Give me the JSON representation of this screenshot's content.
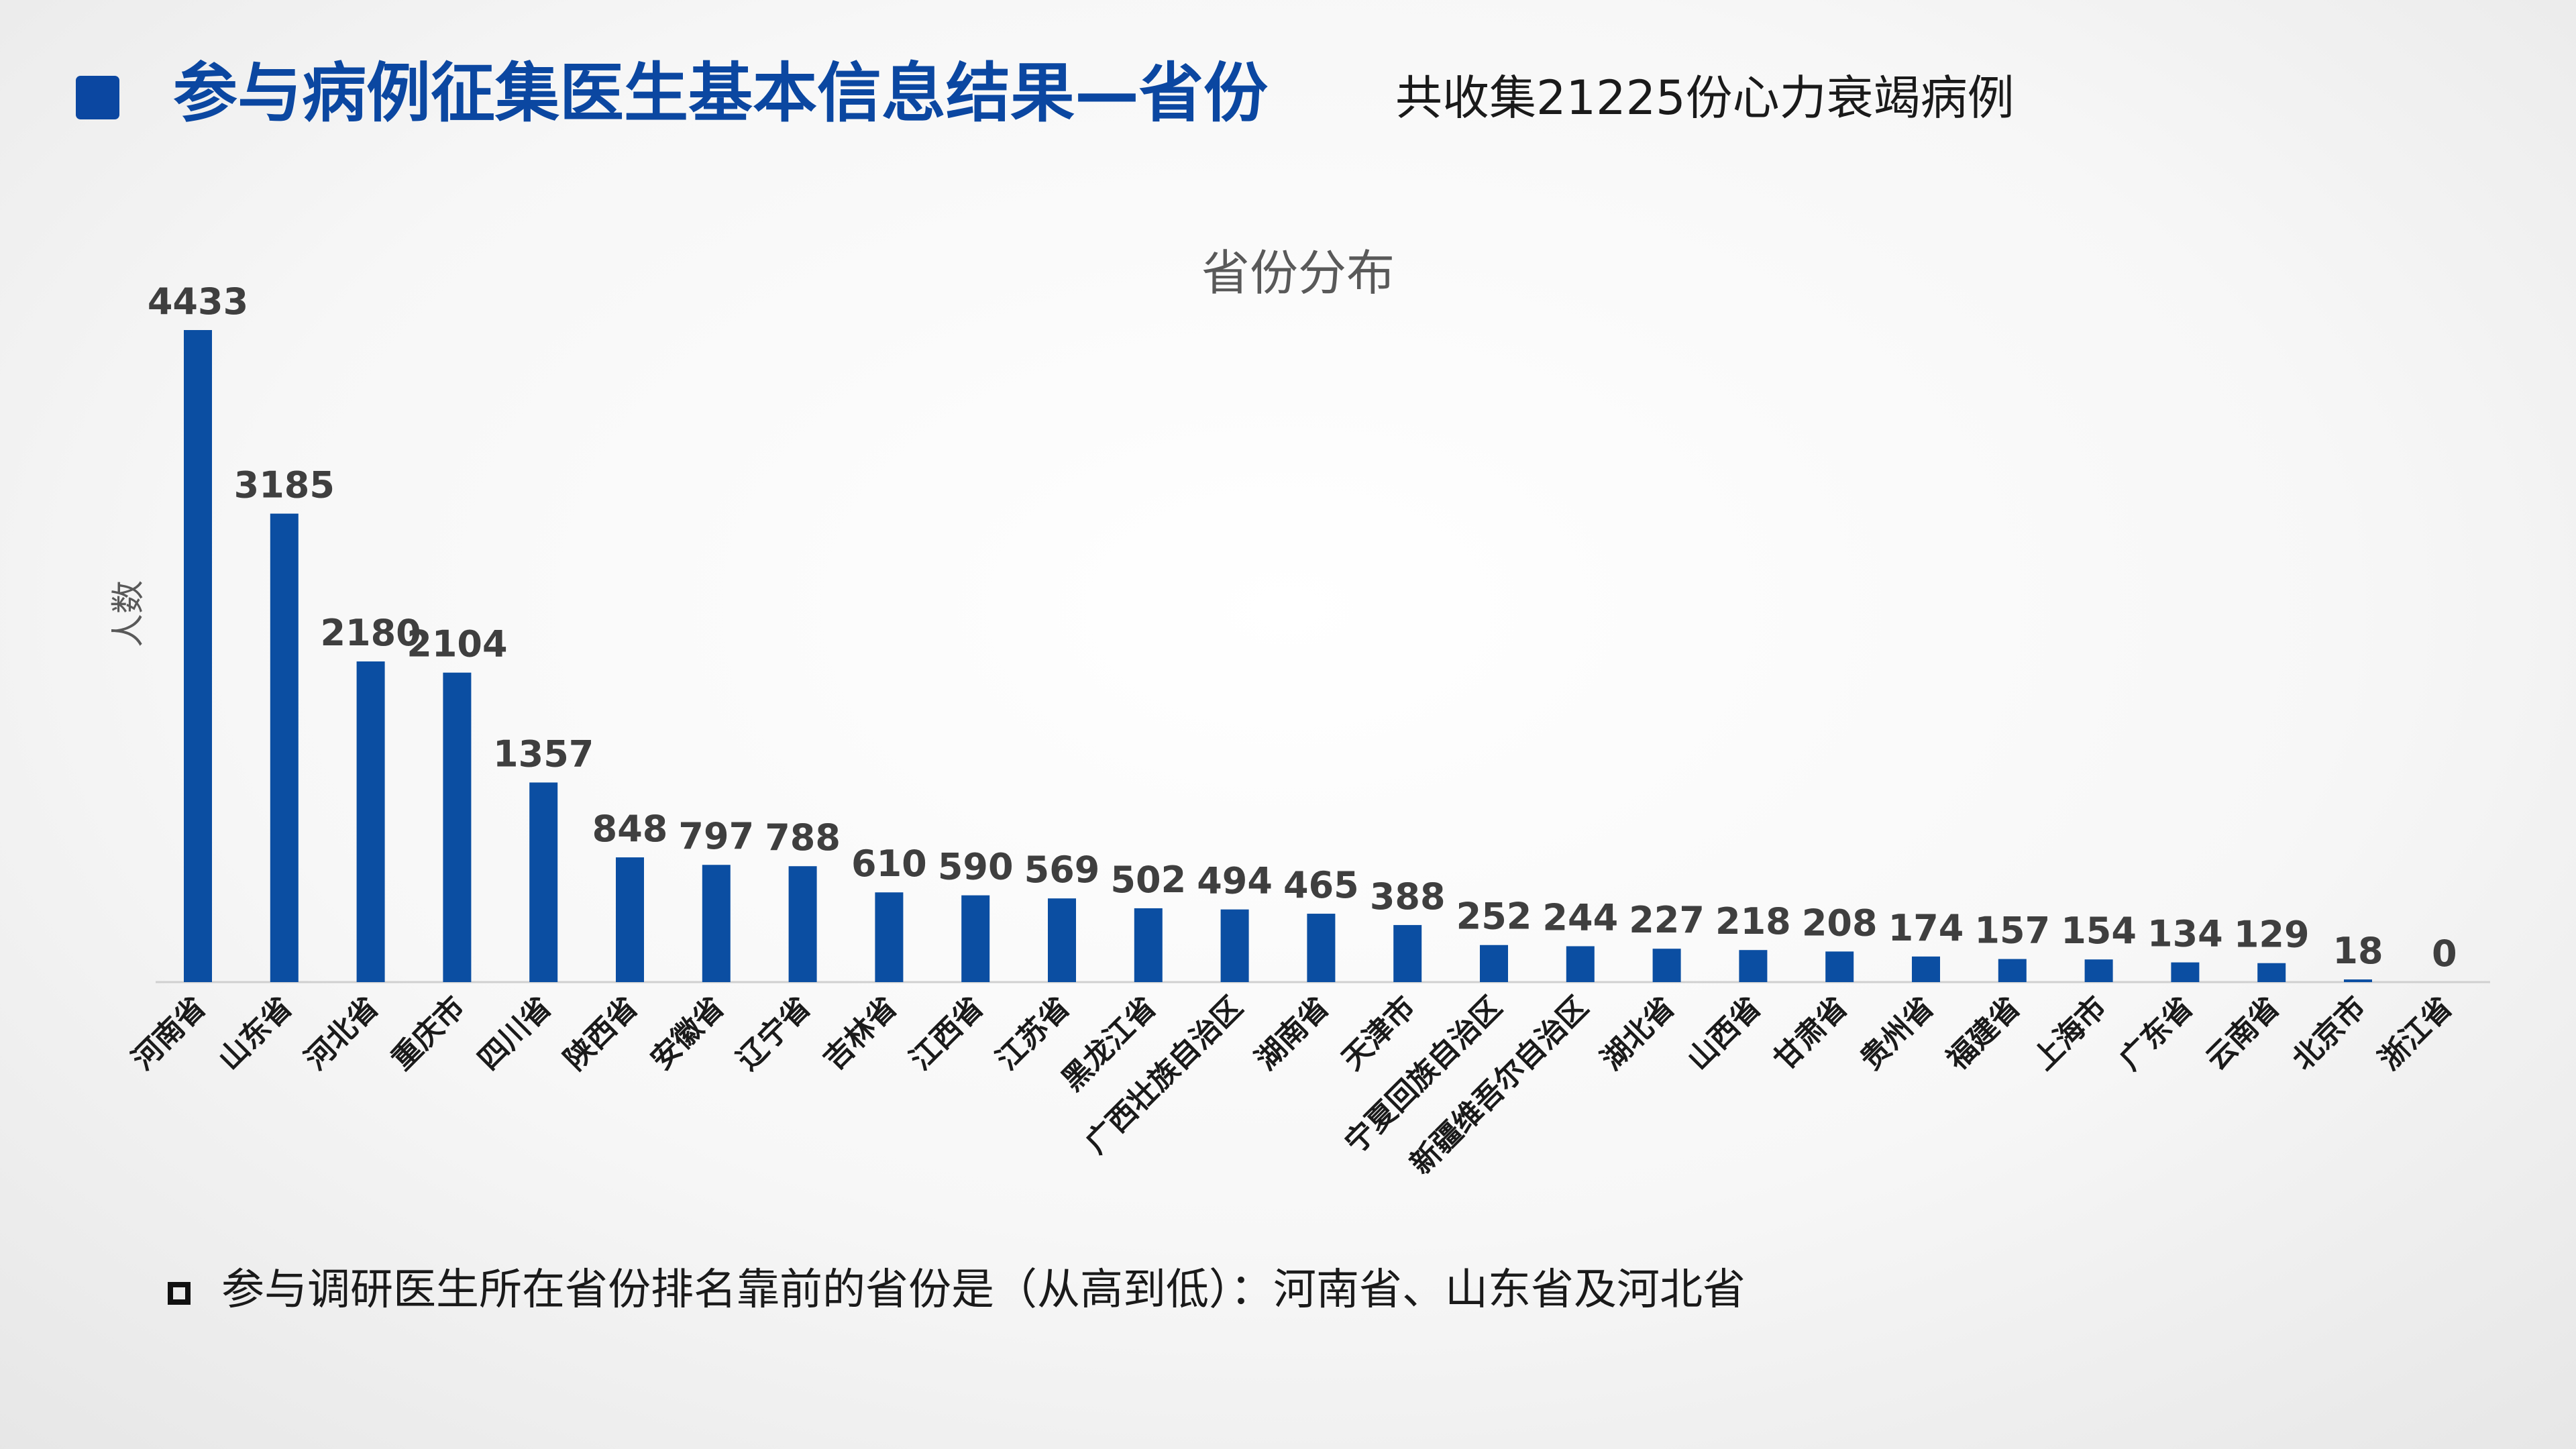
{
  "header": {
    "title": "参与病例征集医生基本信息结果—省份",
    "subtitle": "共收集21225份心力衰竭病例"
  },
  "footer": {
    "note": "参与调研医生所在省份排名靠前的省份是（从高到低）：河南省、山东省及河北省"
  },
  "colors": {
    "accent": "#0b47a1",
    "bar": "#0b4ea2"
  },
  "chart_data": {
    "type": "bar",
    "title": "省份分布",
    "xlabel": "",
    "ylabel": "人数",
    "ylim": [
      0,
      4433
    ],
    "grid": false,
    "legend": "none",
    "categories": [
      "河南省",
      "山东省",
      "河北省",
      "重庆市",
      "四川省",
      "陕西省",
      "安徽省",
      "辽宁省",
      "吉林省",
      "江西省",
      "江苏省",
      "黑龙江省",
      "广西壮族自治区",
      "湖南省",
      "天津市",
      "宁夏回族自治区",
      "新疆维吾尔自治区",
      "湖北省",
      "山西省",
      "甘肃省",
      "贵州省",
      "福建省",
      "上海市",
      "广东省",
      "云南省",
      "北京市",
      "浙江省"
    ],
    "values": [
      4433,
      3185,
      2180,
      2104,
      1357,
      848,
      797,
      788,
      610,
      590,
      569,
      502,
      494,
      465,
      388,
      252,
      244,
      227,
      218,
      208,
      174,
      157,
      154,
      134,
      129,
      18,
      0
    ]
  }
}
